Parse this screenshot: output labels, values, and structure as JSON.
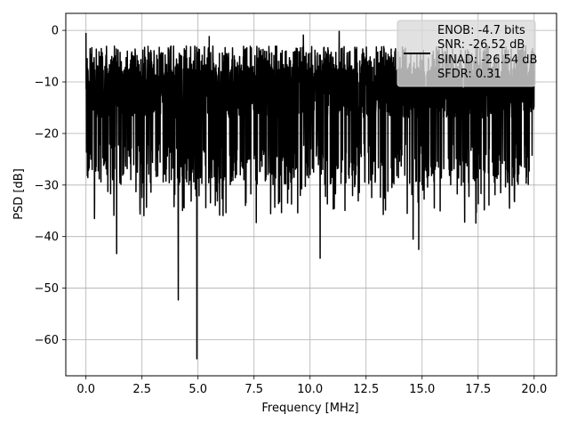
{
  "chart_data": {
    "type": "line",
    "xlabel": "Frequency [MHz]",
    "ylabel": "PSD [dB]",
    "xlim": [
      -0.9,
      21.0
    ],
    "ylim": [
      -67.0,
      3.3
    ],
    "x_ticks": [
      0.0,
      2.5,
      5.0,
      7.5,
      10.0,
      12.5,
      15.0,
      17.5,
      20.0
    ],
    "x_tick_labels": [
      "0.0",
      "2.5",
      "5.0",
      "7.5",
      "10.0",
      "12.5",
      "15.0",
      "17.5",
      "20.0"
    ],
    "y_ticks": [
      0,
      -10,
      -20,
      -30,
      -40,
      -50,
      -60
    ],
    "y_tick_labels": [
      "0",
      "−10",
      "−20",
      "−30",
      "−40",
      "−50",
      "−60"
    ],
    "grid": true,
    "legend_position": "top-right",
    "series": [
      {
        "color": "#000000",
        "x_start": 0.0,
        "x_end": 20.0,
        "baseline_db": -12,
        "upper_envelope_db": -6,
        "lower_envelope_db": -26,
        "noise_seed": 7,
        "features": [
          {
            "x": 0.0,
            "y": -0.5
          },
          {
            "x": 0.12,
            "y": -27
          },
          {
            "x": 0.38,
            "y": -36.5
          },
          {
            "x": 1.37,
            "y": -43.3
          },
          {
            "x": 4.12,
            "y": -52.3
          },
          {
            "x": 4.95,
            "y": -63.7
          },
          {
            "x": 5.5,
            "y": -1.2
          },
          {
            "x": 7.6,
            "y": -37.3
          },
          {
            "x": 9.0,
            "y": -33.5
          },
          {
            "x": 9.7,
            "y": -0.9
          },
          {
            "x": 10.45,
            "y": -44.2
          },
          {
            "x": 11.3,
            "y": -0.2
          },
          {
            "x": 14.6,
            "y": -40.5
          },
          {
            "x": 14.85,
            "y": -42.5
          },
          {
            "x": 16.9,
            "y": -37.2
          },
          {
            "x": 17.4,
            "y": -37.4
          },
          {
            "x": 18.9,
            "y": -34.5
          }
        ]
      }
    ],
    "legend_lines": [
      "ENOB: -4.7 bits",
      "SNR: -26.52 dB",
      "SINAD: -26.54 dB",
      "SFDR: 0.31"
    ]
  }
}
